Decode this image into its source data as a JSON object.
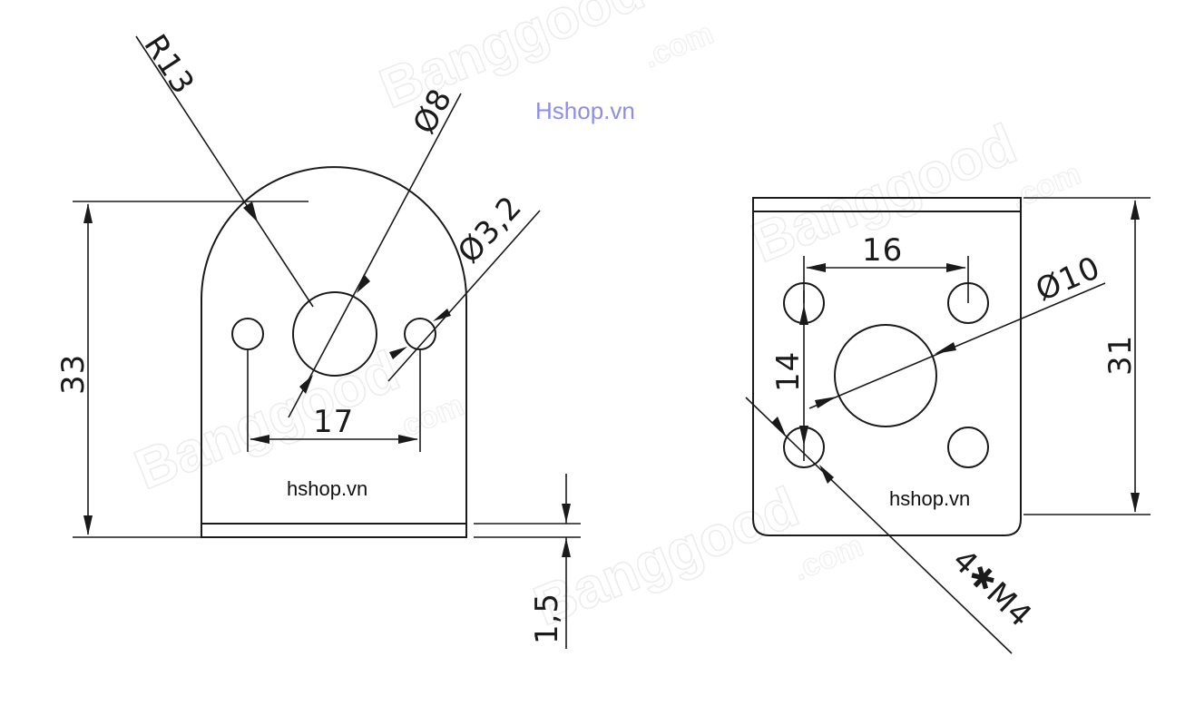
{
  "header": {
    "site_label": "Hshop.vn",
    "site_color": "#8e8ee6"
  },
  "watermark": {
    "brand": "Banggood",
    "domain": ".com"
  },
  "left_view": {
    "radius_label": "R13",
    "center_hole_label": "Ø8",
    "side_hole_label": "Ø3,2",
    "height_label": "33",
    "hole_spacing_label": "17",
    "thickness_label": "1,5",
    "shop_label": "hshop.vn"
  },
  "right_view": {
    "hole_spacing_h_label": "16",
    "hole_spacing_v_label": "14",
    "center_hole_label": "Ø10",
    "height_label": "31",
    "thread_label": "4✱M4",
    "shop_label": "hshop.vn"
  },
  "colors": {
    "line": "#1a1a1a",
    "watermark": "#ececec"
  }
}
